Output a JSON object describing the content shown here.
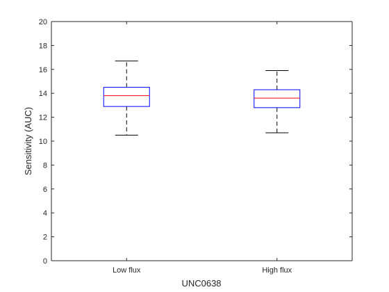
{
  "chart_data": {
    "type": "box",
    "title": "",
    "xlabel": "UNC0638",
    "ylabel": "Sensitivity (AUC)",
    "categories": [
      "Low flux",
      "High flux"
    ],
    "ylim": [
      0,
      20
    ],
    "yticks": [
      0,
      2,
      4,
      6,
      8,
      10,
      12,
      14,
      16,
      18,
      20
    ],
    "grid": false,
    "boxes": [
      {
        "category": "Low flux",
        "min": 10.5,
        "q1": 12.9,
        "median": 13.8,
        "q3": 14.5,
        "max": 16.7
      },
      {
        "category": "High flux",
        "min": 10.7,
        "q1": 12.8,
        "median": 13.6,
        "q3": 14.3,
        "max": 15.9
      }
    ],
    "colors": {
      "box": "#0000ff",
      "median": "#ff0000",
      "whisker": "#000000",
      "axes": "#262626"
    }
  }
}
